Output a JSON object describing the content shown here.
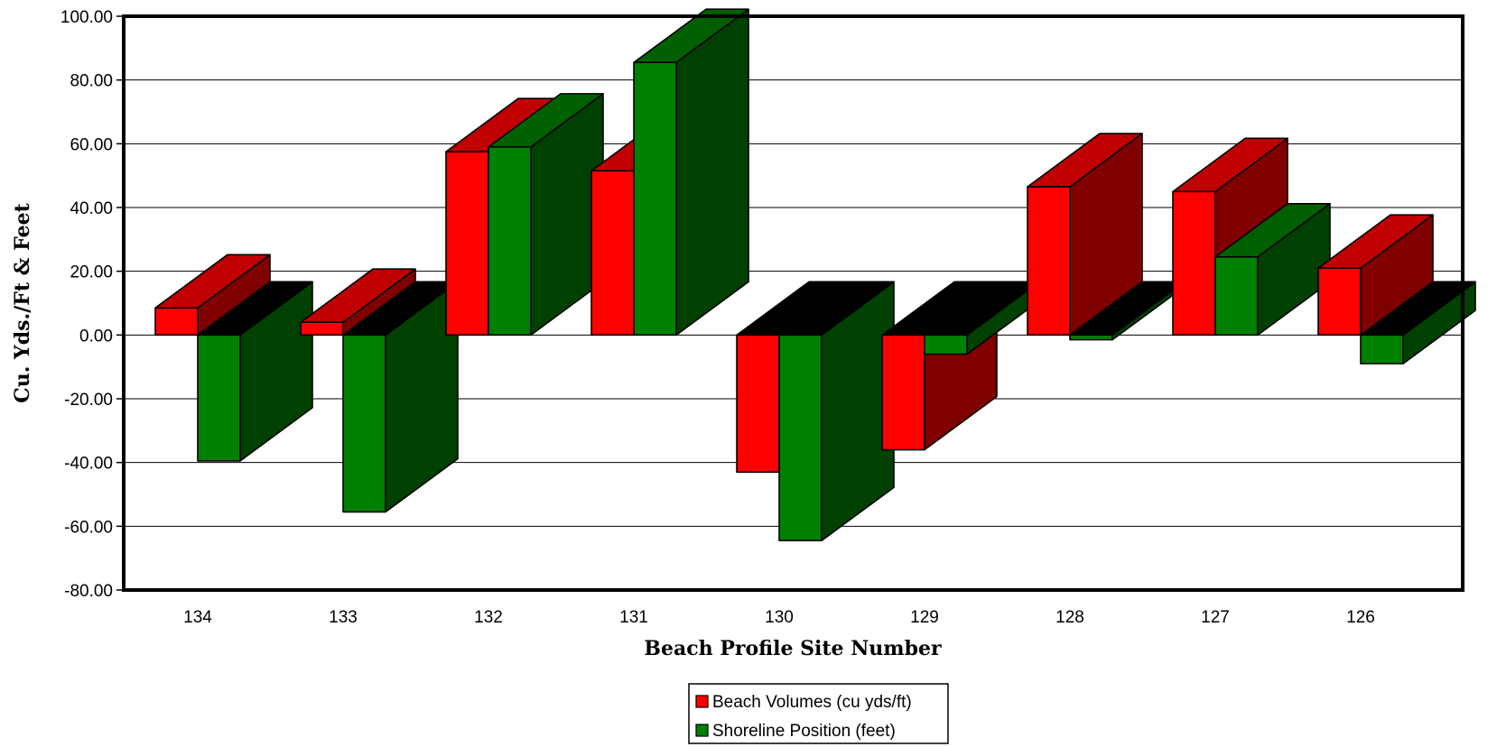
{
  "chart_data": {
    "type": "bar",
    "title": "",
    "xlabel": "Beach Profile Site Number",
    "ylabel": "Cu. Yds./Ft & Feet",
    "categories": [
      "134",
      "133",
      "132",
      "131",
      "130",
      "129",
      "128",
      "127",
      "126"
    ],
    "series": [
      {
        "name": "Beach Volumes (cu yds/ft)",
        "color": "#ff0000",
        "side_color": "#800000",
        "top_color": "#c00000",
        "values": [
          8.5,
          4.0,
          57.5,
          51.5,
          -43.0,
          -36.0,
          46.5,
          45.0,
          21.0
        ]
      },
      {
        "name": "Shoreline Position (feet)",
        "color": "#008000",
        "side_color": "#004000",
        "top_color": "#006000",
        "values": [
          -39.5,
          -55.5,
          59.0,
          85.5,
          -64.5,
          -6.0,
          -1.5,
          24.5,
          -9.0
        ]
      }
    ],
    "ylim": [
      -80,
      100
    ],
    "yticks": [
      -80,
      -60,
      -40,
      -20,
      0,
      20,
      40,
      60,
      80,
      100
    ],
    "ytick_labels": [
      "-80.00",
      "-60.00",
      "-40.00",
      "-20.00",
      "0.00",
      "20.00",
      "40.00",
      "60.00",
      "80.00",
      "100.00"
    ],
    "grid": true,
    "legend_position": "bottom-center",
    "three_d": true
  }
}
